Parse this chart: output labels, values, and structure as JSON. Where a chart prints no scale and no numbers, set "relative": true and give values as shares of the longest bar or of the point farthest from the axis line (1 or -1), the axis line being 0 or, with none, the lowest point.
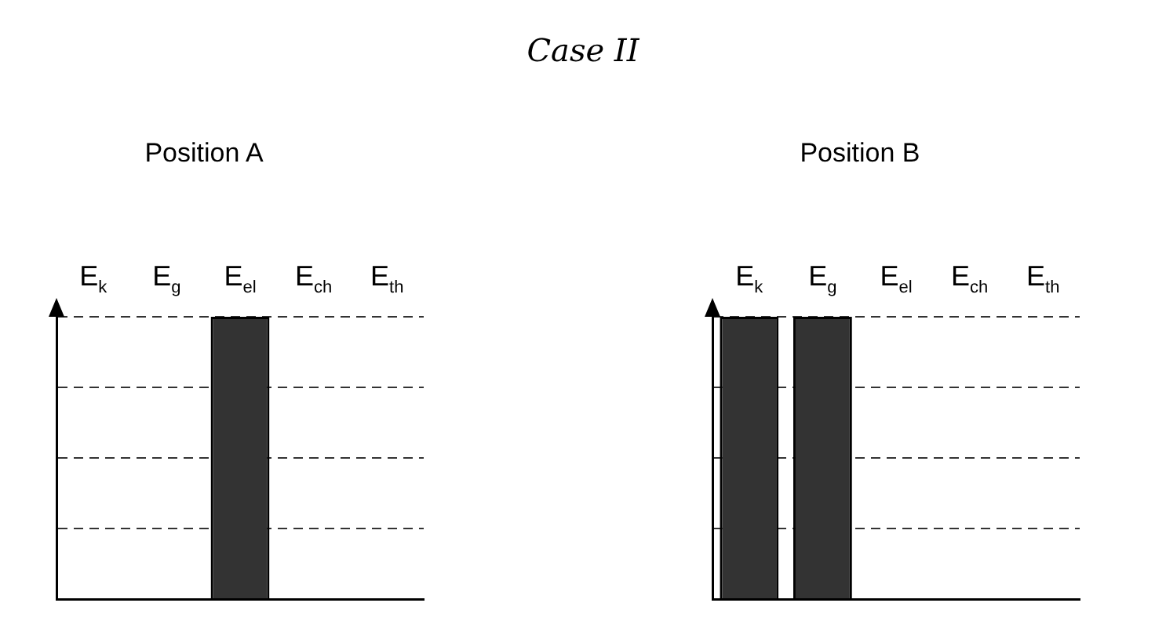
{
  "chart_data": [
    {
      "type": "bar",
      "title": "Position A",
      "annotations": [
        "Case II"
      ],
      "categories": [
        "E$_{k}$",
        "E$_{g}$",
        "E$_{el}$",
        "E$_{ch}$",
        "E$_{th}$"
      ],
      "values": [
        0,
        0,
        1,
        0,
        0
      ],
      "color": "#333333",
      "relative": true,
      "grid": "y",
      "line_style": "dashed",
      "legend": false
    },
    {
      "type": "bar",
      "title": "Position B",
      "categories": [
        "E$_{k}$",
        "E$_{g}$",
        "E$_{el}$",
        "E$_{ch}$",
        "E$_{th}$"
      ],
      "values": [
        1,
        1,
        0,
        0,
        0
      ],
      "color": "#333333",
      "relative": true,
      "grid": "y",
      "line_style": "dashed",
      "legend": false
    }
  ]
}
